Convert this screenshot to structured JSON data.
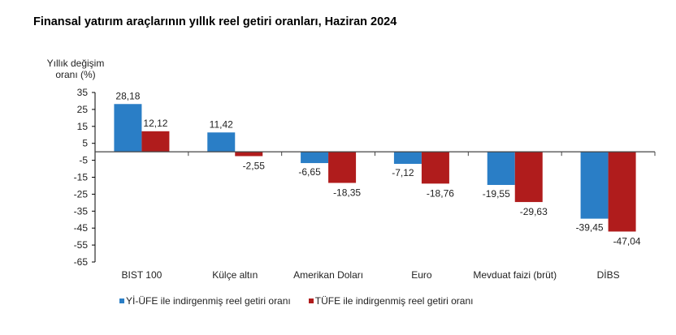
{
  "title": "Finansal yatırım araçlarının yıllık reel getiri oranları, Haziran 2024",
  "colors": {
    "yiufe": "#2a7ec6",
    "tufe": "#b01c1c",
    "axis": "#000000"
  },
  "chart_data": {
    "type": "bar",
    "title": "Finansal yatırım araçlarının yıllık reel getiri oranları, Haziran 2024",
    "ylabel": "Yıllık değişim oranı (%)",
    "ylabel_lines": [
      "Yıllık değişim",
      "oranı (%)"
    ],
    "xlabel": "",
    "ylim": [
      -65,
      35
    ],
    "yticks": [
      35,
      25,
      15,
      5,
      -5,
      -15,
      -25,
      -35,
      -45,
      -55,
      -65
    ],
    "grid": false,
    "legend_position": "bottom",
    "categories": [
      "BIST 100",
      "Külçe altın",
      "Amerikan Doları",
      "Euro",
      "Mevduat faizi (brüt)",
      "DİBS"
    ],
    "series": [
      {
        "name": "Yİ-ÜFE ile indirgenmiş reel getiri oranı",
        "color": "#2a7ec6",
        "values": [
          28.18,
          11.42,
          -6.65,
          -7.12,
          -19.55,
          -39.45
        ],
        "labels": [
          "28,18",
          "11,42",
          "-6,65",
          "-7,12",
          "-19,55",
          "-39,45"
        ]
      },
      {
        "name": "TÜFE ile indirgenmiş reel getiri oranı",
        "color": "#b01c1c",
        "values": [
          12.12,
          -2.55,
          -18.35,
          -18.76,
          -29.63,
          -47.04
        ],
        "labels": [
          "12,12",
          "-2,55",
          "-18,35",
          "-18,76",
          "-29,63",
          "-47,04"
        ]
      }
    ]
  }
}
